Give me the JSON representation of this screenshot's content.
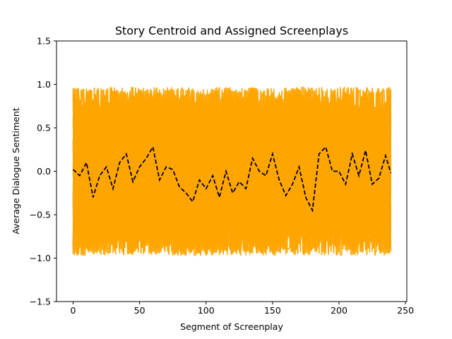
{
  "chart_data": {
    "type": "line",
    "title": "Story Centroid and Assigned Screenplays",
    "xlabel": "Segment of Screenplay",
    "ylabel": "Average Dialogue Sentiment",
    "xlim": [
      -12.5,
      251
    ],
    "ylim": [
      -1.5,
      1.5
    ],
    "x_ticks": [
      0,
      50,
      100,
      150,
      200,
      250
    ],
    "y_ticks": [
      -1.5,
      -1.0,
      -0.5,
      0.0,
      0.5,
      1.0,
      1.5
    ],
    "x_tick_labels": [
      "0",
      "50",
      "100",
      "150",
      "200",
      "250"
    ],
    "y_tick_labels": [
      "−1.5",
      "−1.0",
      "−0.5",
      "0.0",
      "0.5",
      "1.0",
      "1.5"
    ],
    "grid": false,
    "legend": "none",
    "n_segments": 240,
    "assigned_screenplays": {
      "color": "#ffa500",
      "count": 40,
      "value_range": [
        -0.97,
        0.97
      ]
    },
    "centroid": {
      "color": "#000000",
      "linestyle": "dashed",
      "x": [
        0,
        5,
        10,
        15,
        20,
        25,
        30,
        35,
        40,
        45,
        50,
        55,
        60,
        65,
        70,
        75,
        80,
        85,
        90,
        95,
        100,
        105,
        110,
        115,
        120,
        125,
        130,
        135,
        140,
        145,
        150,
        155,
        160,
        165,
        170,
        175,
        180,
        185,
        190,
        195,
        200,
        205,
        210,
        215,
        220,
        225,
        230,
        235,
        239
      ],
      "y": [
        0.02,
        -0.05,
        0.1,
        -0.3,
        -0.05,
        0.05,
        -0.2,
        0.1,
        0.2,
        -0.12,
        0.05,
        0.15,
        0.28,
        -0.1,
        0.05,
        0.02,
        -0.18,
        -0.25,
        -0.35,
        -0.1,
        -0.2,
        -0.05,
        -0.3,
        0.0,
        -0.25,
        -0.12,
        -0.2,
        0.15,
        0.0,
        -0.05,
        0.2,
        -0.1,
        -0.28,
        -0.15,
        0.05,
        -0.3,
        -0.45,
        0.2,
        0.28,
        0.0,
        0.0,
        -0.15,
        0.2,
        -0.05,
        0.24,
        -0.15,
        -0.08,
        0.18,
        -0.02
      ]
    }
  }
}
